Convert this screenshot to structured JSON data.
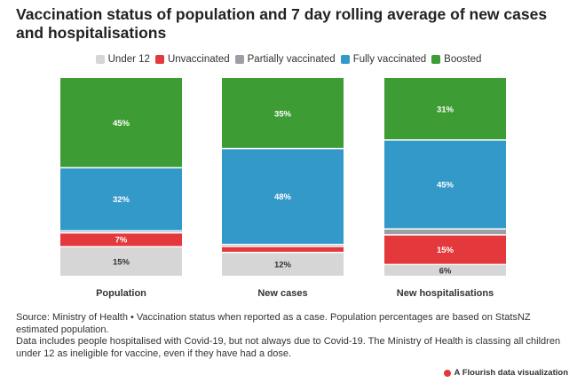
{
  "title": "Vaccination status of population and 7 day rolling average of new cases and hospitalisations",
  "legend": [
    {
      "label": "Under 12",
      "color": "#d6d6d6"
    },
    {
      "label": "Unvaccinated",
      "color": "#e4393c"
    },
    {
      "label": "Partially vaccinated",
      "color": "#9aa0a6"
    },
    {
      "label": "Fully vaccinated",
      "color": "#3399c9"
    },
    {
      "label": "Boosted",
      "color": "#3e9c35"
    }
  ],
  "chart_data": {
    "type": "bar",
    "stacked": "100%",
    "categories": [
      "Population",
      "New cases",
      "New hospitalisations"
    ],
    "series": [
      {
        "name": "Under 12",
        "color": "#d6d6d6",
        "values": [
          15,
          12,
          6
        ],
        "labels": [
          "15%",
          "12%",
          "6%"
        ]
      },
      {
        "name": "Unvaccinated",
        "color": "#e4393c",
        "values": [
          7,
          3,
          15
        ],
        "labels": [
          "7%",
          "",
          "15%"
        ]
      },
      {
        "name": "Partially vaccinated",
        "color": "#9aa0a6",
        "values": [
          1,
          1,
          3
        ],
        "labels": [
          "",
          "",
          ""
        ]
      },
      {
        "name": "Fully vaccinated",
        "color": "#3399c9",
        "values": [
          32,
          48,
          45
        ],
        "labels": [
          "32%",
          "48%",
          "45%"
        ]
      },
      {
        "name": "Boosted",
        "color": "#3e9c35",
        "values": [
          45,
          35,
          31
        ],
        "labels": [
          "45%",
          "35%",
          "31%"
        ]
      }
    ],
    "ylim": [
      0,
      100
    ],
    "grid": false,
    "legend_position": "top"
  },
  "footer": {
    "line1": "Source: Ministry of Health • Vaccination status when reported as a case. Population percentages are based on StatsNZ estimated population.",
    "line2": "Data includes people hospitalised with Covid-19, but not always due to Covid-19. The Ministry of Health is classing all children under 12 as ineligible for vaccine, even if they have had a dose."
  },
  "credit": "A Flourish data visualization"
}
